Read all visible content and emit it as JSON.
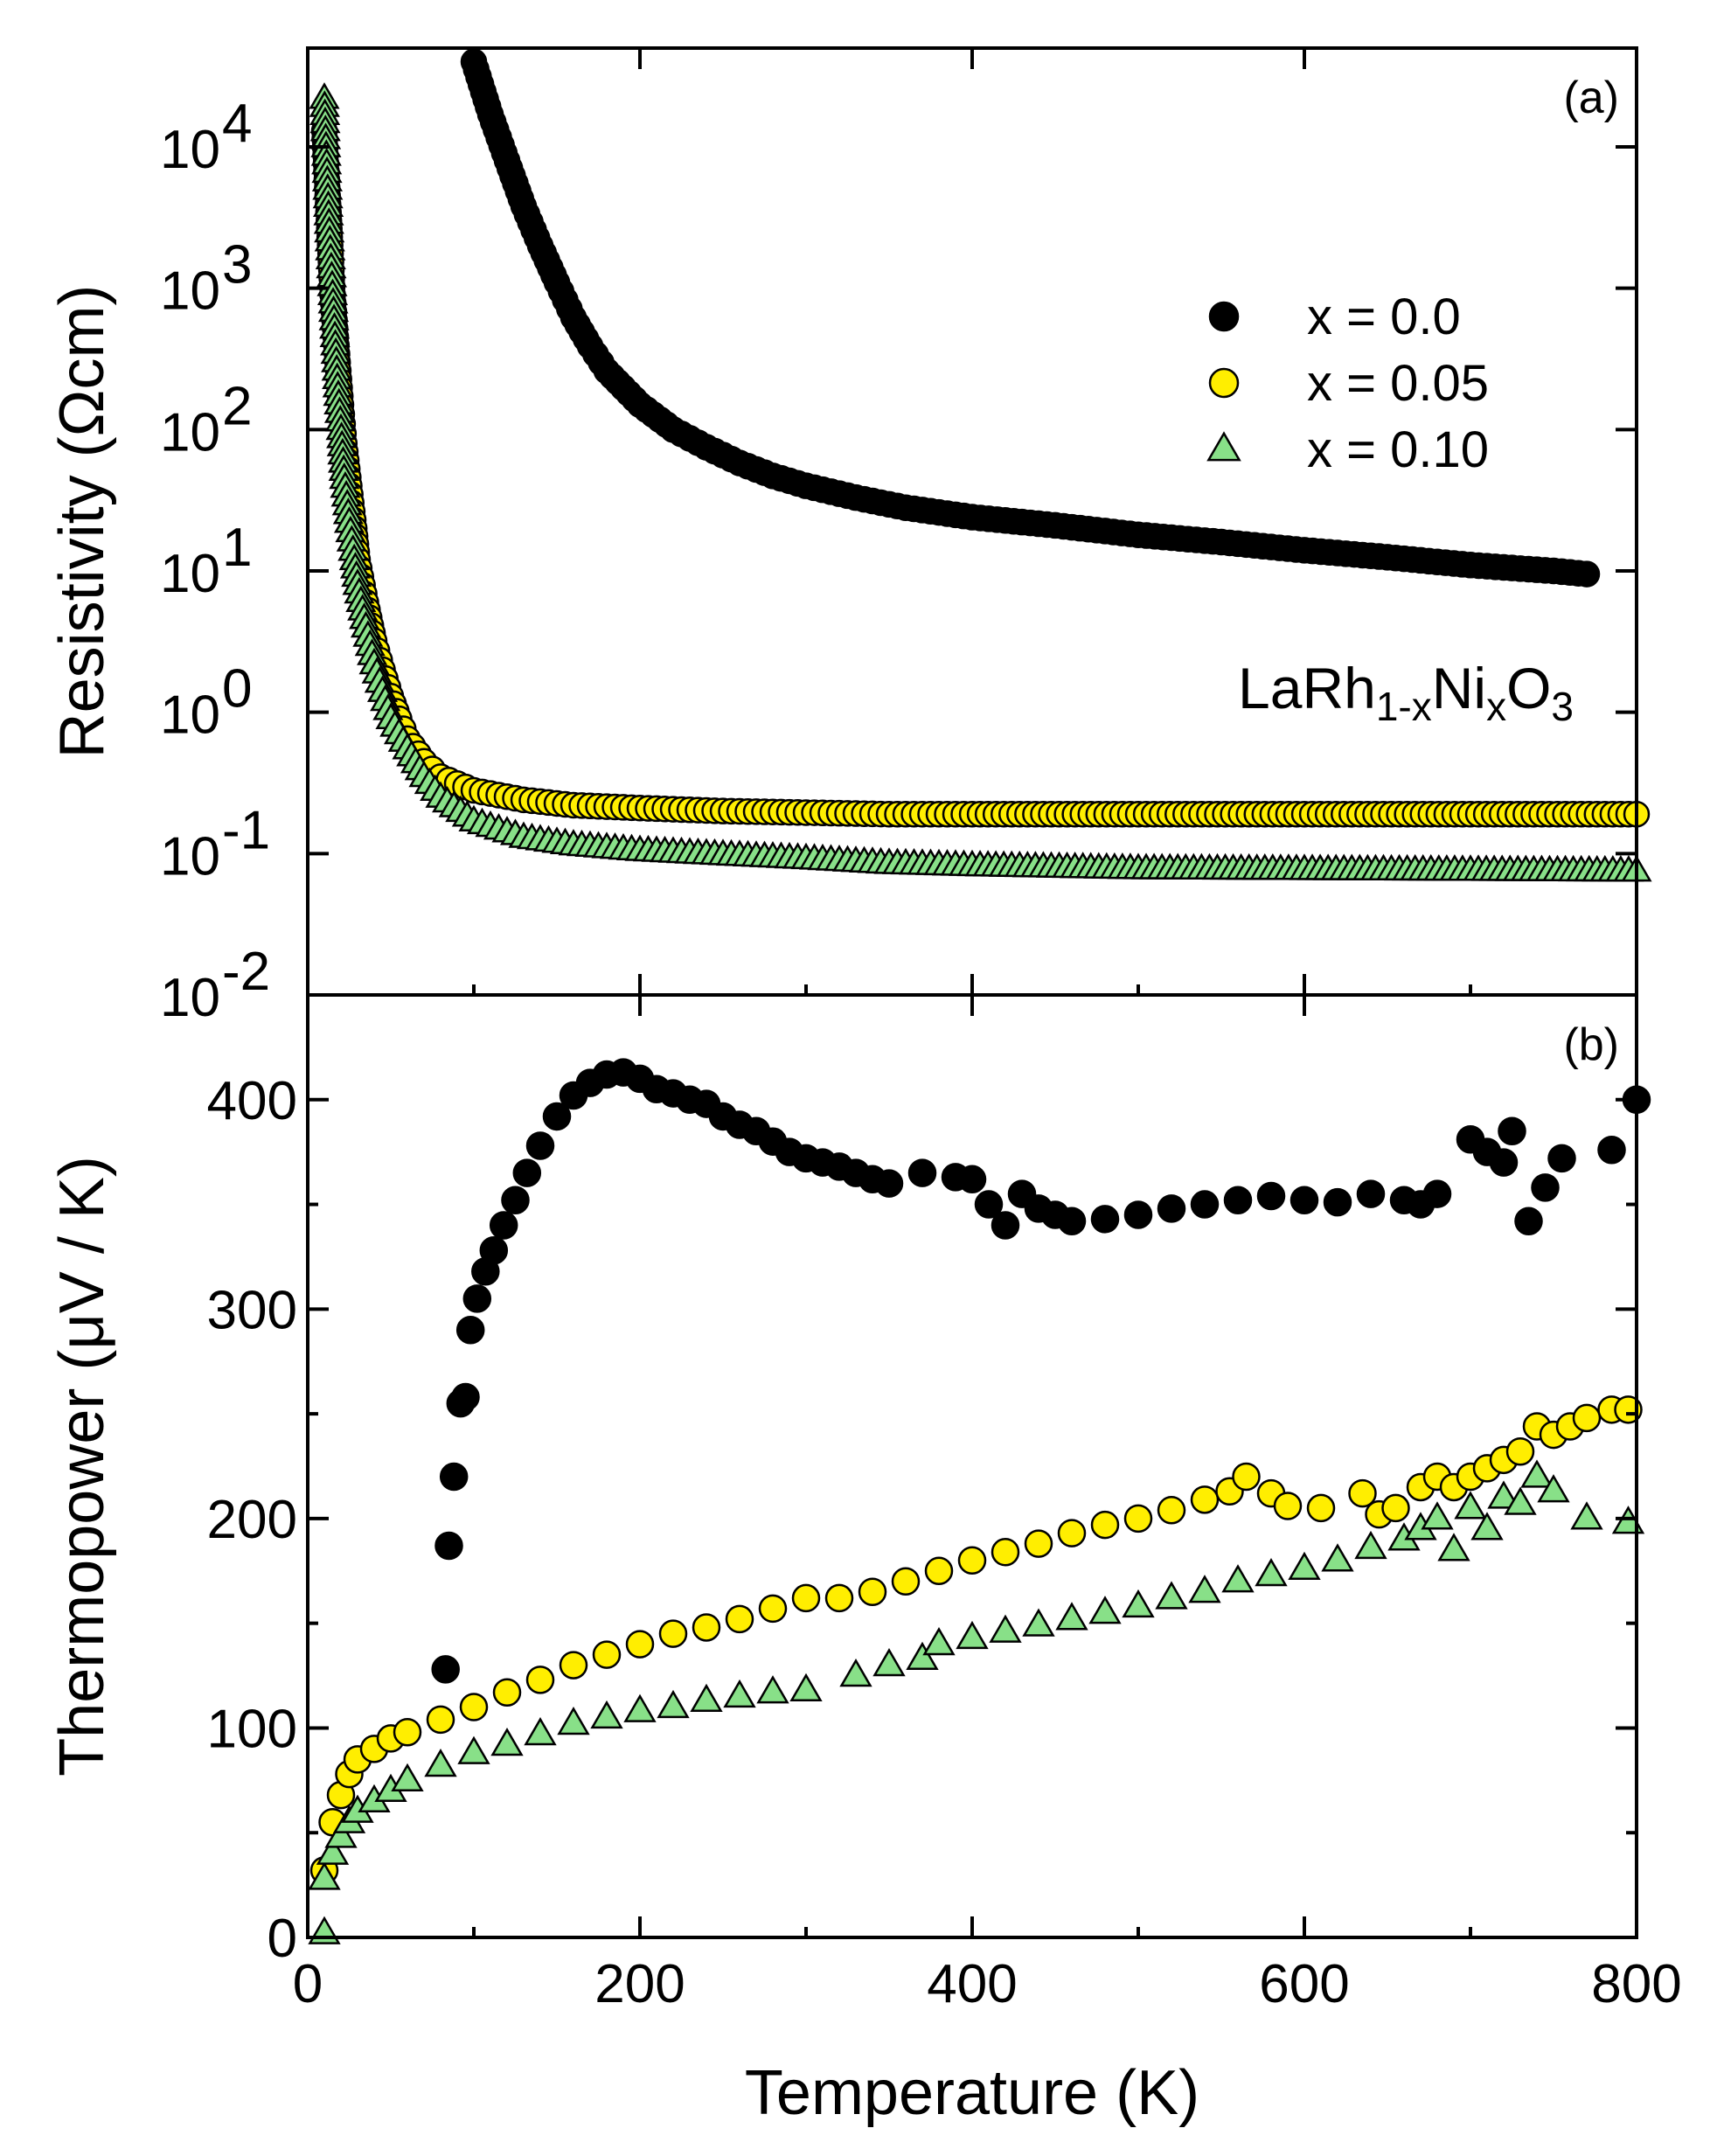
{
  "chart_data": [
    {
      "id": "a",
      "type": "scatter",
      "panel_label": "(a)",
      "ylabel": "Resistivity (Ωcm)",
      "yscale": "log",
      "ylim": [
        0.01,
        50000
      ],
      "xlim": [
        0,
        800
      ],
      "yticks": [
        0.01,
        0.1,
        1,
        10,
        100,
        1000,
        10000
      ],
      "ytick_labels": [
        {
          "base": "10",
          "exp": "-2"
        },
        {
          "base": "10",
          "exp": "-1"
        },
        {
          "base": "10",
          "exp": "0"
        },
        {
          "base": "10",
          "exp": "1"
        },
        {
          "base": "10",
          "exp": "2"
        },
        {
          "base": "10",
          "exp": "3"
        },
        {
          "base": "10",
          "exp": "4"
        }
      ],
      "annotation": {
        "parts": [
          "LaRh",
          "1-x",
          "Ni",
          "x",
          "O",
          "3"
        ]
      },
      "legend": {
        "position": "top-right",
        "entries": [
          "x = 0.0",
          "x = 0.05",
          "x = 0.10"
        ]
      },
      "series": [
        {
          "name": "x = 0.0",
          "marker": "circle",
          "face": "#000000",
          "points": [
            [
              100,
              40000
            ],
            [
              110,
              17000
            ],
            [
              120,
              8000
            ],
            [
              130,
              3800
            ],
            [
              140,
              2000
            ],
            [
              150,
              1100
            ],
            [
              160,
              620
            ],
            [
              170,
              390
            ],
            [
              180,
              260
            ],
            [
              200,
              150
            ],
            [
              220,
              100
            ],
            [
              240,
              75
            ],
            [
              260,
              58
            ],
            [
              280,
              47
            ],
            [
              300,
              40
            ],
            [
              330,
              33
            ],
            [
              360,
              28
            ],
            [
              400,
              24
            ],
            [
              450,
              21
            ],
            [
              500,
              18
            ],
            [
              550,
              16
            ],
            [
              600,
              14
            ],
            [
              650,
              12.5
            ],
            [
              700,
              11
            ],
            [
              750,
              10
            ],
            [
              770,
              9.5
            ]
          ]
        },
        {
          "name": "x = 0.05",
          "marker": "circle",
          "face": "#ffee00",
          "points": [
            [
              10,
              13000
            ],
            [
              12,
              4500
            ],
            [
              15,
              900
            ],
            [
              18,
              300
            ],
            [
              20,
              150
            ],
            [
              22,
              80
            ],
            [
              25,
              40
            ],
            [
              28,
              20
            ],
            [
              30,
              12
            ],
            [
              35,
              6
            ],
            [
              40,
              3.2
            ],
            [
              45,
              2.0
            ],
            [
              50,
              1.3
            ],
            [
              55,
              0.9
            ],
            [
              60,
              0.65
            ],
            [
              70,
              0.45
            ],
            [
              80,
              0.35
            ],
            [
              100,
              0.28
            ],
            [
              130,
              0.24
            ],
            [
              160,
              0.22
            ],
            [
              200,
              0.21
            ],
            [
              250,
              0.2
            ],
            [
              300,
              0.195
            ],
            [
              350,
              0.19
            ],
            [
              400,
              0.19
            ],
            [
              500,
              0.19
            ],
            [
              600,
              0.19
            ],
            [
              700,
              0.19
            ],
            [
              800,
              0.19
            ]
          ]
        },
        {
          "name": "x = 0.10",
          "marker": "triangle",
          "face": "#88e088",
          "points": [
            [
              10,
              22000
            ],
            [
              11,
              10000
            ],
            [
              13,
              2500
            ],
            [
              15,
              900
            ],
            [
              18,
              200
            ],
            [
              20,
              100
            ],
            [
              22,
              45
            ],
            [
              25,
              22
            ],
            [
              28,
              12
            ],
            [
              30,
              8
            ],
            [
              35,
              4
            ],
            [
              40,
              2.2
            ],
            [
              45,
              1.4
            ],
            [
              50,
              0.9
            ],
            [
              60,
              0.55
            ],
            [
              70,
              0.35
            ],
            [
              80,
              0.25
            ],
            [
              100,
              0.17
            ],
            [
              130,
              0.13
            ],
            [
              160,
              0.115
            ],
            [
              200,
              0.105
            ],
            [
              250,
              0.098
            ],
            [
              300,
              0.092
            ],
            [
              350,
              0.085
            ],
            [
              400,
              0.082
            ],
            [
              500,
              0.078
            ],
            [
              600,
              0.077
            ],
            [
              700,
              0.076
            ],
            [
              800,
              0.075
            ]
          ]
        }
      ]
    },
    {
      "id": "b",
      "type": "scatter",
      "panel_label": "(b)",
      "ylabel": "Thermopower (μV / K)",
      "xlabel": "Temperature (K)",
      "ylim": [
        0,
        450
      ],
      "xlim": [
        0,
        800
      ],
      "yticks": [
        0,
        100,
        200,
        300,
        400
      ],
      "ytick_labels": [
        "0",
        "100",
        "200",
        "300",
        "400"
      ],
      "xticks": [
        0,
        200,
        400,
        600,
        800
      ],
      "xtick_labels": [
        "0",
        "200",
        "400",
        "600",
        "800"
      ],
      "series": [
        {
          "name": "x = 0.0",
          "marker": "circle",
          "face": "#000000",
          "points": [
            [
              83,
              128
            ],
            [
              85,
              187
            ],
            [
              88,
              220
            ],
            [
              92,
              255
            ],
            [
              95,
              258
            ],
            [
              98,
              290
            ],
            [
              102,
              305
            ],
            [
              107,
              318
            ],
            [
              112,
              328
            ],
            [
              118,
              340
            ],
            [
              125,
              352
            ],
            [
              132,
              365
            ],
            [
              140,
              378
            ],
            [
              150,
              392
            ],
            [
              160,
              402
            ],
            [
              170,
              408
            ],
            [
              180,
              412
            ],
            [
              190,
              413
            ],
            [
              200,
              410
            ],
            [
              210,
              405
            ],
            [
              220,
              403
            ],
            [
              230,
              400
            ],
            [
              240,
              398
            ],
            [
              250,
              392
            ],
            [
              260,
              388
            ],
            [
              270,
              385
            ],
            [
              280,
              380
            ],
            [
              290,
              375
            ],
            [
              300,
              372
            ],
            [
              310,
              370
            ],
            [
              320,
              368
            ],
            [
              330,
              365
            ],
            [
              340,
              362
            ],
            [
              350,
              360
            ],
            [
              370,
              365
            ],
            [
              390,
              363
            ],
            [
              400,
              362
            ],
            [
              410,
              350
            ],
            [
              420,
              340
            ],
            [
              430,
              355
            ],
            [
              440,
              348
            ],
            [
              450,
              345
            ],
            [
              460,
              342
            ],
            [
              480,
              343
            ],
            [
              500,
              345
            ],
            [
              520,
              348
            ],
            [
              540,
              350
            ],
            [
              560,
              352
            ],
            [
              580,
              354
            ],
            [
              600,
              352
            ],
            [
              620,
              351
            ],
            [
              640,
              355
            ],
            [
              660,
              352
            ],
            [
              670,
              350
            ],
            [
              680,
              355
            ],
            [
              700,
              381
            ],
            [
              710,
              375
            ],
            [
              720,
              370
            ],
            [
              725,
              385
            ],
            [
              735,
              342
            ],
            [
              745,
              358
            ],
            [
              755,
              372
            ],
            [
              785,
              376
            ],
            [
              800,
              400
            ]
          ]
        },
        {
          "name": "x = 0.05",
          "marker": "circle",
          "face": "#ffee00",
          "points": [
            [
              10,
              32
            ],
            [
              15,
              55
            ],
            [
              20,
              68
            ],
            [
              25,
              78
            ],
            [
              30,
              85
            ],
            [
              40,
              90
            ],
            [
              50,
              95
            ],
            [
              60,
              98
            ],
            [
              80,
              104
            ],
            [
              100,
              110
            ],
            [
              120,
              117
            ],
            [
              140,
              123
            ],
            [
              160,
              130
            ],
            [
              180,
              135
            ],
            [
              200,
              140
            ],
            [
              220,
              145
            ],
            [
              240,
              148
            ],
            [
              260,
              152
            ],
            [
              280,
              157
            ],
            [
              300,
              162
            ],
            [
              320,
              162
            ],
            [
              340,
              165
            ],
            [
              360,
              170
            ],
            [
              380,
              175
            ],
            [
              400,
              180
            ],
            [
              420,
              184
            ],
            [
              440,
              188
            ],
            [
              460,
              193
            ],
            [
              480,
              197
            ],
            [
              500,
              200
            ],
            [
              520,
              204
            ],
            [
              540,
              209
            ],
            [
              555,
              213
            ],
            [
              565,
              220
            ],
            [
              580,
              212
            ],
            [
              590,
              206
            ],
            [
              610,
              205
            ],
            [
              635,
              212
            ],
            [
              645,
              202
            ],
            [
              655,
              205
            ],
            [
              670,
              215
            ],
            [
              680,
              220
            ],
            [
              690,
              215
            ],
            [
              700,
              220
            ],
            [
              710,
              224
            ],
            [
              720,
              228
            ],
            [
              730,
              232
            ],
            [
              740,
              244
            ],
            [
              750,
              240
            ],
            [
              760,
              244
            ],
            [
              770,
              248
            ],
            [
              785,
              252
            ],
            [
              795,
              252
            ]
          ]
        },
        {
          "name": "x = 0.10",
          "marker": "triangle",
          "face": "#88e088",
          "points": [
            [
              10,
              2
            ],
            [
              10,
              28
            ],
            [
              15,
              40
            ],
            [
              20,
              48
            ],
            [
              25,
              55
            ],
            [
              30,
              60
            ],
            [
              40,
              65
            ],
            [
              50,
              70
            ],
            [
              60,
              75
            ],
            [
              80,
              82
            ],
            [
              100,
              88
            ],
            [
              120,
              92
            ],
            [
              140,
              97
            ],
            [
              160,
              102
            ],
            [
              180,
              105
            ],
            [
              200,
              108
            ],
            [
              220,
              110
            ],
            [
              240,
              113
            ],
            [
              260,
              115
            ],
            [
              280,
              117
            ],
            [
              300,
              118
            ],
            [
              330,
              125
            ],
            [
              350,
              130
            ],
            [
              370,
              133
            ],
            [
              380,
              140
            ],
            [
              400,
              143
            ],
            [
              420,
              146
            ],
            [
              440,
              149
            ],
            [
              460,
              152
            ],
            [
              480,
              155
            ],
            [
              500,
              158
            ],
            [
              520,
              162
            ],
            [
              540,
              165
            ],
            [
              560,
              170
            ],
            [
              580,
              173
            ],
            [
              600,
              176
            ],
            [
              620,
              180
            ],
            [
              640,
              186
            ],
            [
              660,
              190
            ],
            [
              670,
              195
            ],
            [
              680,
              200
            ],
            [
              690,
              185
            ],
            [
              700,
              205
            ],
            [
              710,
              195
            ],
            [
              720,
              210
            ],
            [
              730,
              207
            ],
            [
              740,
              220
            ],
            [
              750,
              213
            ],
            [
              770,
              200
            ],
            [
              795,
              198
            ]
          ]
        }
      ]
    }
  ]
}
